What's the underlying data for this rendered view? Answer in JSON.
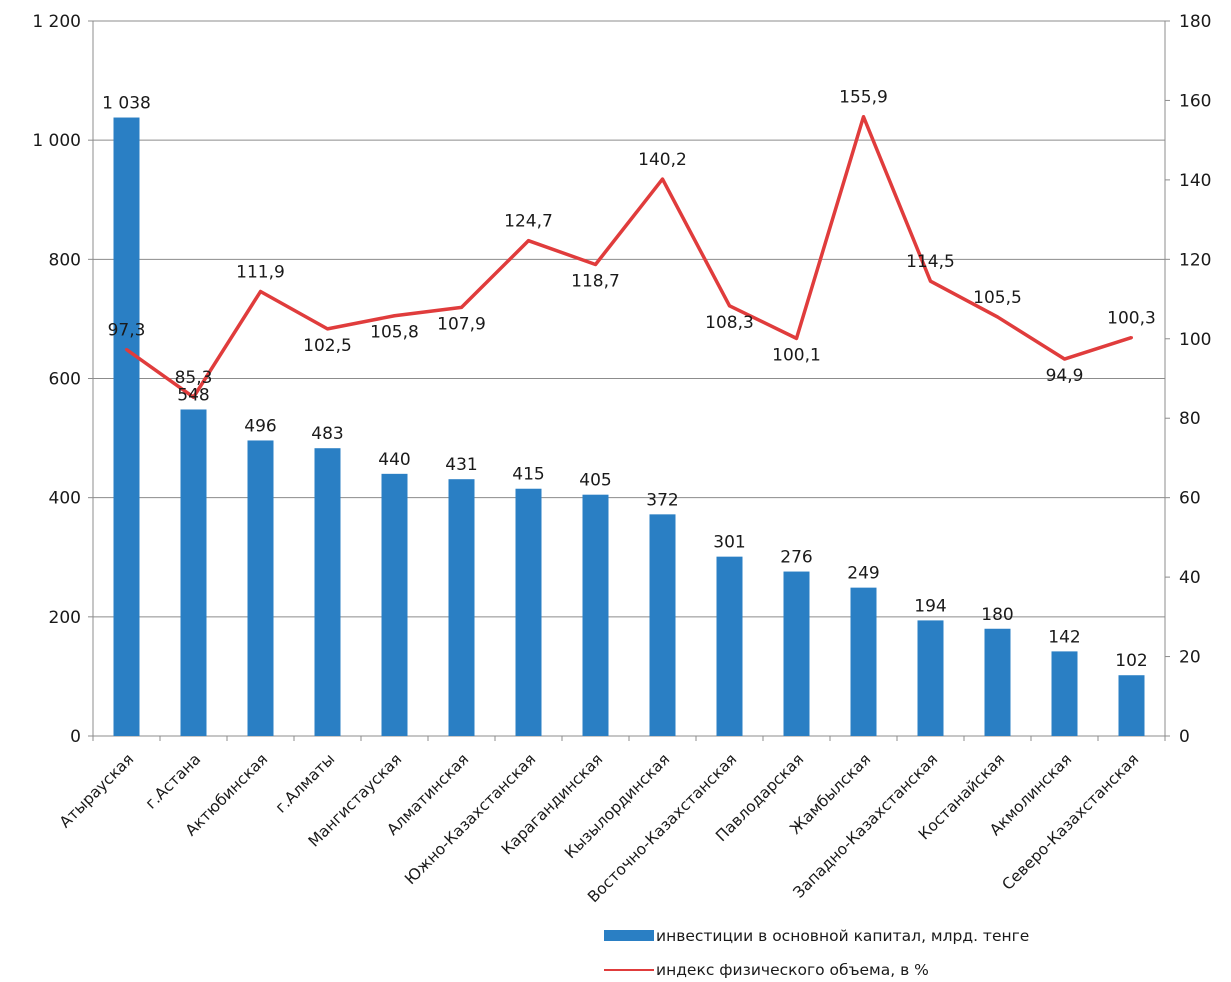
{
  "chart_data": {
    "type": "bar",
    "categories": [
      "Атырауская",
      "г.Астана",
      "Актюбинская",
      "г.Алматы",
      "Мангистауская",
      "Алматинская",
      "Южно-Казахстанская",
      "Карагандинская",
      "Кызылординская",
      "Восточно-Казахстанская",
      "Павлодарская",
      "Жамбылская",
      "Западно-Казахстанская",
      "Костанайская",
      "Акмолинская",
      "Северо-Казахстанская"
    ],
    "series": [
      {
        "name": "инвестиции в основной капитал, млрд. тенге",
        "type": "bar",
        "axis": "left",
        "color": "#2a7fc4",
        "values": [
          1038,
          548,
          496,
          483,
          440,
          431,
          415,
          405,
          372,
          301,
          276,
          249,
          194,
          180,
          142,
          102
        ],
        "labels": [
          "1 038",
          "548",
          "496",
          "483",
          "440",
          "431",
          "415",
          "405",
          "372",
          "301",
          "276",
          "249",
          "194",
          "180",
          "142",
          "102"
        ]
      },
      {
        "name": "индекс физического объема, в %",
        "type": "line",
        "axis": "right",
        "color": "#e03c3c",
        "values": [
          97.3,
          85.3,
          111.9,
          102.5,
          105.8,
          107.9,
          124.7,
          118.7,
          140.2,
          108.3,
          100.1,
          155.9,
          114.5,
          105.5,
          94.9,
          100.3
        ],
        "labels": [
          "97,3",
          "85,3",
          "111,9",
          "102,5",
          "105,8",
          "107,9",
          "124,7",
          "118,7",
          "140,2",
          "108,3",
          "100,1",
          "155,9",
          "114,5",
          "105,5",
          "94,9",
          "100,3"
        ]
      }
    ],
    "y_left": {
      "range": [
        0,
        1200
      ],
      "ticks": [
        0,
        200,
        400,
        600,
        800,
        1000,
        1200
      ],
      "tick_labels": [
        "0",
        "200",
        "400",
        "600",
        "800",
        "1 000",
        "1 200"
      ]
    },
    "y_right": {
      "range": [
        0,
        180
      ],
      "ticks": [
        0,
        20,
        40,
        60,
        80,
        100,
        120,
        140,
        160,
        180
      ],
      "tick_labels": [
        "0",
        "20",
        "40",
        "60",
        "80",
        "100",
        "120",
        "140",
        "160",
        "180"
      ]
    },
    "grid": true,
    "legend": {
      "placement": "bottom",
      "entries": [
        "инвестиции в основной капитал, млрд. тенге",
        "индекс физического объема, в %"
      ]
    },
    "title": "",
    "xlabel": "",
    "ylabel": ""
  }
}
